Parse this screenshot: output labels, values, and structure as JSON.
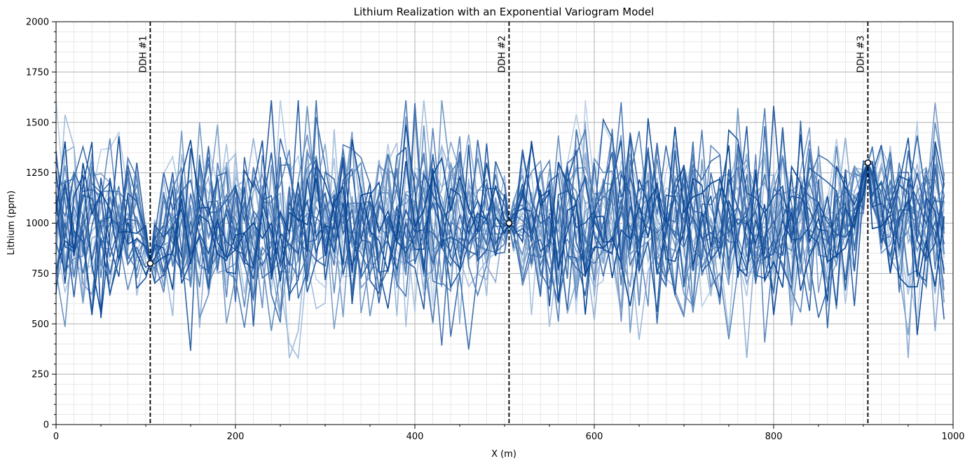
{
  "chart_data": {
    "type": "line",
    "title": "Lithium Realization with an Exponential Variogram Model",
    "xlabel": "X (m)",
    "ylabel": "Lithium (ppm)",
    "xlim": [
      0,
      1000
    ],
    "ylim": [
      0,
      2000
    ],
    "x_ticks": [
      "0",
      "200",
      "400",
      "600",
      "800",
      "1000"
    ],
    "y_ticks": [
      "0",
      "250",
      "500",
      "750",
      "1000",
      "1250",
      "1500",
      "1750",
      "2000"
    ],
    "x_tick_values": [
      0,
      200,
      400,
      600,
      800,
      1000
    ],
    "y_tick_values": [
      0,
      250,
      500,
      750,
      1000,
      1250,
      1500,
      1750,
      2000
    ],
    "grid": "major and minor",
    "colormap": "Blues",
    "n_realizations": 30,
    "x_step": 10,
    "drillholes": [
      {
        "label": "DDH #1",
        "x": 105,
        "y": 800
      },
      {
        "label": "DDH #2",
        "x": 505,
        "y": 1000
      },
      {
        "label": "DDH #3",
        "x": 905,
        "y": 1300
      }
    ],
    "value_range": [
      330,
      1610
    ],
    "unconditioned_mean": 1000,
    "unconditioned_sd": 220,
    "colors": {
      "dashed_line": "#000000",
      "marker_fill": "#ffffff",
      "marker_edge": "#000000",
      "grid_major": "#b0b0b0",
      "grid_minor": "#e2e2e2"
    }
  }
}
